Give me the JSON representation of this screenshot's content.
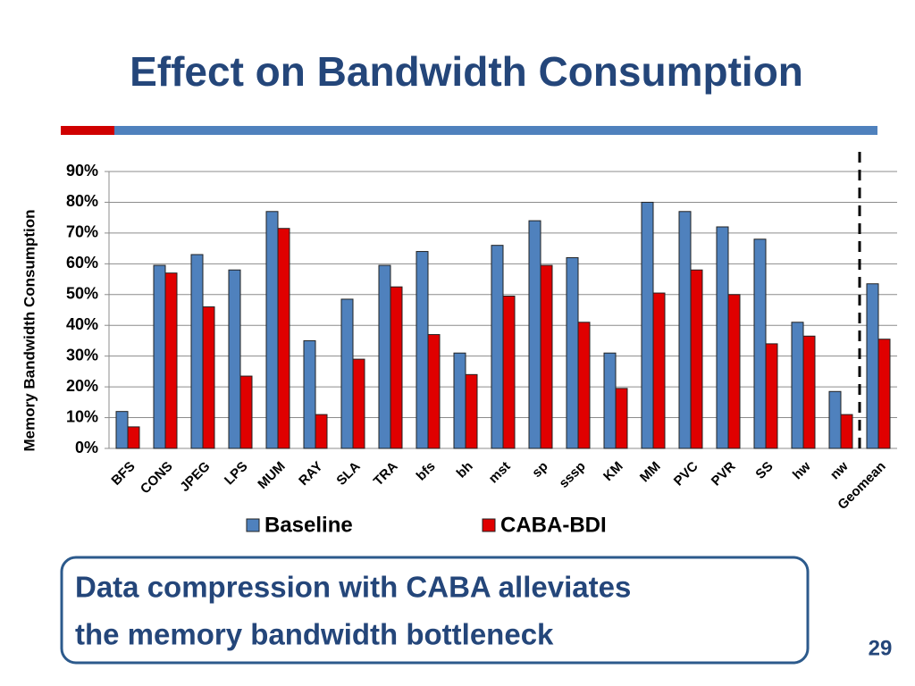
{
  "slide": {
    "title": "Effect on Bandwidth Consumption",
    "callout": [
      "Data compression with CABA alleviates",
      "the memory bandwidth bottleneck"
    ],
    "page_number": "29"
  },
  "chart_data": {
    "type": "bar",
    "ylabel": "Memory Bandwidth Consumption",
    "categories": [
      "BFS",
      "CONS",
      "JPEG",
      "LPS",
      "MUM",
      "RAY",
      "SLA",
      "TRA",
      "bfs",
      "bh",
      "mst",
      "sp",
      "sssp",
      "KM",
      "MM",
      "PVC",
      "PVR",
      "SS",
      "hw",
      "nw",
      "Geomean"
    ],
    "series": [
      {
        "name": "Baseline",
        "color": "#4f81bd",
        "values": [
          12,
          59.5,
          63,
          58,
          77,
          35,
          48.5,
          59.5,
          64,
          31,
          66,
          74,
          62,
          31,
          80,
          77,
          72,
          68,
          41,
          18.5,
          53.5
        ]
      },
      {
        "name": "CABA-BDI",
        "color": "#e00000",
        "values": [
          7,
          57,
          46,
          23.5,
          71.5,
          11,
          29,
          52.5,
          37,
          24,
          49.5,
          59.5,
          41,
          19.5,
          50.5,
          58,
          50,
          34,
          36.5,
          11,
          35.5
        ]
      }
    ],
    "ylim": [
      0,
      90
    ],
    "yticks": [
      {
        "value": 0,
        "label": "0%"
      },
      {
        "value": 10,
        "label": "10%"
      },
      {
        "value": 20,
        "label": "20%"
      },
      {
        "value": 30,
        "label": "30%"
      },
      {
        "value": 40,
        "label": "40%"
      },
      {
        "value": 50,
        "label": "50%"
      },
      {
        "value": 60,
        "label": "60%"
      },
      {
        "value": 70,
        "label": "70%"
      },
      {
        "value": 80,
        "label": "80%"
      },
      {
        "value": 90,
        "label": "90%"
      }
    ],
    "grid": true
  }
}
